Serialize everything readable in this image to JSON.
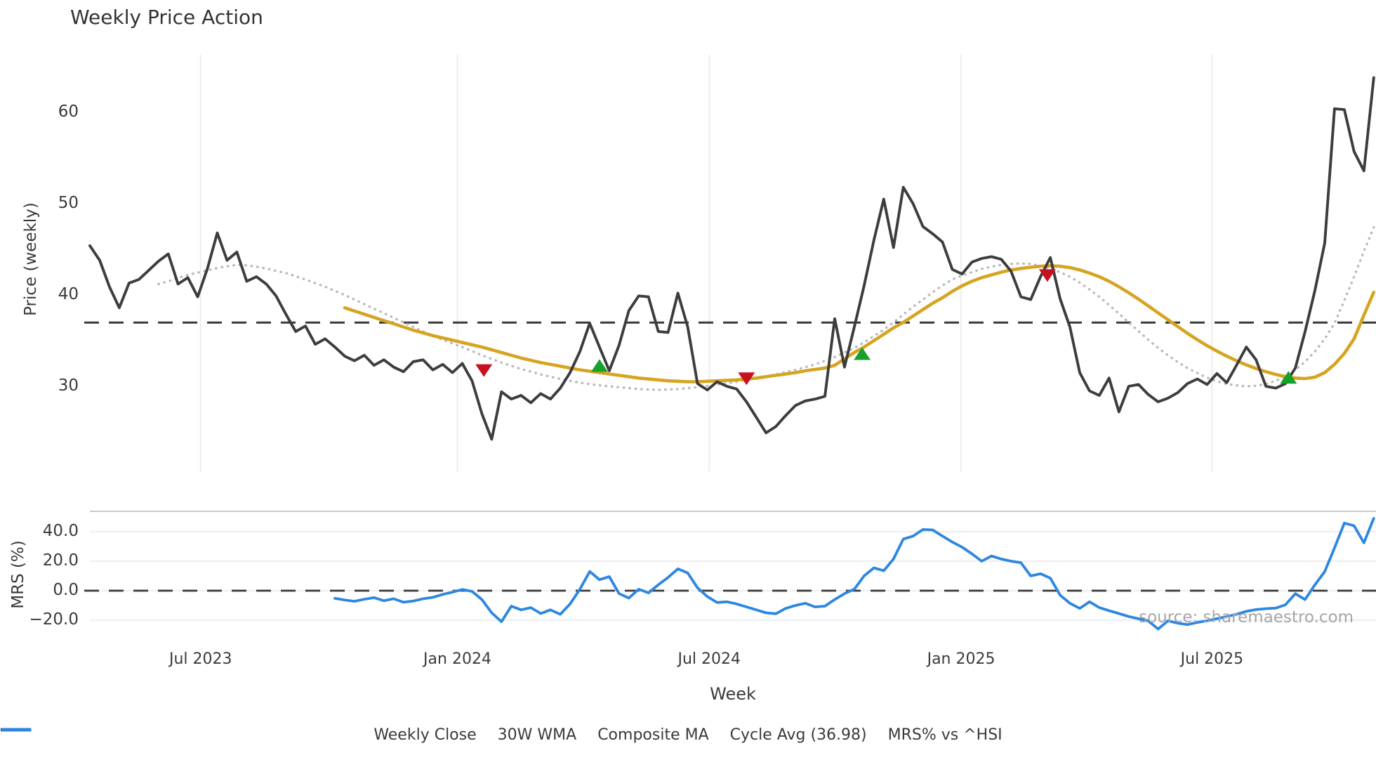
{
  "page": {
    "title": "Weekly Price Action",
    "xlabel": "Week",
    "source_note": "source: sharemaestro.com"
  },
  "colors": {
    "weekly_close": "#3d3d3d",
    "wma": "#d5a421",
    "composite": "#b9b9b9",
    "cycle": "#3a3a3a",
    "mrs": "#2d87e0",
    "buy": "#17a12b",
    "sell": "#c8101f",
    "grid": "#ededed",
    "mrs_grid": "#eff0f4",
    "panel_border": "#c9c9c9",
    "text": "#3a3a3a",
    "muted": "#a6a6a6"
  },
  "legend": [
    {
      "label": "Weekly Close",
      "swatch": "solid",
      "color_key": "weekly_close"
    },
    {
      "label": "30W WMA",
      "swatch": "solid",
      "color_key": "wma"
    },
    {
      "label": "Composite MA",
      "swatch": "dotted",
      "color_key": "composite"
    },
    {
      "label": "Cycle Avg (36.98)",
      "swatch": "dashed",
      "color_key": "cycle"
    },
    {
      "label": "MRS% vs ^HSI",
      "swatch": "solid",
      "color_key": "mrs"
    }
  ],
  "chart_data": [
    {
      "type": "line",
      "panel": "price",
      "title": "Weekly Price Action",
      "ylabel": "Price (weekly)",
      "yticks": [
        {
          "v": 60,
          "label": "60"
        },
        {
          "v": 50,
          "label": "50"
        },
        {
          "v": 40,
          "label": "40"
        },
        {
          "v": 30,
          "label": "30"
        }
      ],
      "ylim": [
        20.5,
        66.5
      ],
      "grid": "vertical-only",
      "x_ticks": [
        {
          "week": 11.3,
          "label": "Jul 2023"
        },
        {
          "week": 37.5,
          "label": "Jan 2024"
        },
        {
          "week": 63.2,
          "label": "Jul 2024"
        },
        {
          "week": 88.9,
          "label": "Jan 2025"
        },
        {
          "week": 114.5,
          "label": "Jul 2025"
        }
      ],
      "cycle_avg": 36.98,
      "series": [
        {
          "name": "Weekly Close",
          "style": "solid",
          "start_week": 0,
          "values": [
            45.4,
            43.8,
            40.9,
            38.6,
            41.3,
            41.7,
            42.7,
            43.7,
            44.5,
            41.2,
            41.9,
            39.8,
            42.9,
            46.8,
            43.8,
            44.7,
            41.5,
            42.0,
            41.2,
            39.9,
            37.9,
            36.0,
            36.6,
            34.6,
            35.2,
            34.3,
            33.3,
            32.8,
            33.4,
            32.3,
            32.9,
            32.1,
            31.6,
            32.7,
            32.9,
            31.8,
            32.4,
            31.5,
            32.5,
            30.6,
            27.0,
            24.2,
            29.4,
            28.6,
            29.0,
            28.2,
            29.2,
            28.6,
            29.8,
            31.5,
            33.8,
            36.9,
            34.3,
            31.7,
            34.5,
            38.3,
            39.9,
            39.8,
            36.0,
            35.9,
            40.2,
            36.5,
            30.3,
            29.6,
            30.5,
            30.0,
            29.7,
            28.3,
            26.6,
            24.9,
            25.6,
            26.8,
            27.9,
            28.4,
            28.6,
            28.9,
            37.4,
            32.1,
            36.5,
            41.0,
            46.0,
            50.5,
            45.2,
            51.8,
            50.0,
            47.5,
            46.7,
            45.8,
            42.8,
            42.3,
            43.6,
            44.0,
            44.2,
            43.9,
            42.6,
            39.8,
            39.5,
            42.0,
            44.1,
            39.6,
            36.5,
            31.5,
            29.5,
            29.0,
            30.9,
            27.2,
            30.0,
            30.2,
            29.1,
            28.3,
            28.7,
            29.3,
            30.3,
            30.8,
            30.2,
            31.4,
            30.4,
            32.3,
            34.3,
            32.9,
            30.0,
            29.8,
            30.3,
            32.0,
            36.0,
            40.5,
            45.7,
            60.4,
            60.3,
            55.7,
            53.6,
            63.8
          ]
        },
        {
          "name": "30W WMA",
          "style": "solid",
          "start_week": 26,
          "values": [
            38.6,
            38.25,
            37.9,
            37.55,
            37.2,
            36.85,
            36.5,
            36.15,
            35.85,
            35.55,
            35.3,
            35.05,
            34.8,
            34.55,
            34.3,
            34.0,
            33.7,
            33.4,
            33.1,
            32.85,
            32.6,
            32.4,
            32.2,
            32.0,
            31.8,
            31.65,
            31.5,
            31.35,
            31.2,
            31.05,
            30.9,
            30.8,
            30.7,
            30.6,
            30.55,
            30.5,
            30.5,
            30.55,
            30.6,
            30.65,
            30.7,
            30.8,
            30.9,
            31.05,
            31.2,
            31.35,
            31.5,
            31.7,
            31.85,
            32.0,
            32.3,
            33.0,
            33.7,
            34.3,
            35.0,
            35.7,
            36.4,
            37.0,
            37.7,
            38.4,
            39.1,
            39.7,
            40.4,
            41.0,
            41.5,
            41.9,
            42.2,
            42.5,
            42.75,
            42.9,
            43.05,
            43.15,
            43.2,
            43.15,
            43.0,
            42.75,
            42.4,
            42.0,
            41.5,
            40.9,
            40.25,
            39.55,
            38.8,
            38.05,
            37.3,
            36.55,
            35.8,
            35.1,
            34.45,
            33.85,
            33.3,
            32.8,
            32.35,
            31.95,
            31.6,
            31.3,
            31.05,
            30.9,
            30.85,
            31.0,
            31.5,
            32.4,
            33.6,
            35.2,
            37.8,
            40.3
          ]
        },
        {
          "name": "Composite MA",
          "style": "dotted",
          "start_week": 7,
          "values": [
            41.2,
            41.5,
            41.85,
            42.2,
            42.45,
            42.7,
            42.95,
            43.15,
            43.3,
            43.25,
            43.1,
            42.9,
            42.65,
            42.4,
            42.05,
            41.7,
            41.3,
            40.9,
            40.45,
            40.0,
            39.5,
            39.0,
            38.5,
            38.0,
            37.5,
            37.0,
            36.5,
            36.0,
            35.55,
            35.1,
            34.7,
            34.3,
            33.85,
            33.4,
            33.0,
            32.6,
            32.25,
            31.9,
            31.6,
            31.3,
            31.05,
            30.8,
            30.6,
            30.4,
            30.25,
            30.1,
            30.0,
            29.9,
            29.8,
            29.7,
            29.65,
            29.6,
            29.65,
            29.7,
            29.8,
            29.9,
            30.05,
            30.2,
            30.35,
            30.5,
            30.7,
            30.9,
            31.1,
            31.3,
            31.55,
            31.8,
            32.1,
            32.4,
            32.8,
            33.2,
            33.7,
            34.2,
            34.8,
            35.5,
            36.2,
            37.0,
            37.85,
            38.7,
            39.5,
            40.3,
            41.05,
            41.7,
            42.15,
            42.5,
            42.85,
            43.1,
            43.3,
            43.4,
            43.45,
            43.4,
            43.2,
            42.9,
            42.5,
            42.0,
            41.35,
            40.6,
            39.8,
            38.9,
            37.95,
            37.0,
            36.05,
            35.1,
            34.2,
            33.4,
            32.65,
            32.0,
            31.45,
            30.95,
            30.55,
            30.25,
            30.1,
            30.0,
            30.05,
            30.25,
            30.6,
            31.1,
            31.8,
            32.7,
            33.8,
            35.2,
            36.9,
            39.4,
            42.0,
            44.8,
            47.4
          ]
        }
      ],
      "signals": {
        "sell": [
          [
            40.2,
            31.8
          ],
          [
            67.0,
            30.9
          ],
          [
            97.7,
            42.2
          ]
        ],
        "buy": [
          [
            52.0,
            32.2
          ],
          [
            78.8,
            33.5
          ],
          [
            122.3,
            30.9
          ]
        ]
      }
    },
    {
      "type": "line",
      "panel": "mrs",
      "ylabel": "MRS (%)",
      "yticks": [
        {
          "v": 40,
          "label": "40.0"
        },
        {
          "v": 20,
          "label": "20.0"
        },
        {
          "v": 0,
          "label": "0.0"
        },
        {
          "v": -20,
          "label": "−20.0"
        }
      ],
      "ylim": [
        -30,
        53
      ],
      "grid": "horizontal",
      "zero_dashed": 0,
      "series": [
        {
          "name": "MRS% vs ^HSI",
          "style": "solid",
          "start_week": 25,
          "values": [
            -5.2,
            -6.3,
            -7.2,
            -5.8,
            -4.7,
            -6.8,
            -5.5,
            -7.8,
            -7.0,
            -5.5,
            -4.5,
            -2.5,
            -1.0,
            0.8,
            -0.5,
            -6.0,
            -15.0,
            -21.0,
            -10.5,
            -13.0,
            -11.5,
            -15.5,
            -13.0,
            -16.0,
            -9.0,
            1.0,
            13.0,
            7.5,
            9.5,
            -2.0,
            -5.0,
            1.0,
            -1.5,
            4.0,
            9.0,
            14.8,
            12.0,
            2.0,
            -4.0,
            -8.0,
            -7.5,
            -9.0,
            -11.0,
            -13.0,
            -15.0,
            -15.6,
            -12.0,
            -10.0,
            -8.5,
            -11.0,
            -10.5,
            -6.0,
            -2.0,
            1.0,
            10.0,
            15.5,
            13.5,
            21.5,
            35.0,
            37.0,
            41.5,
            41.2,
            37.0,
            33.0,
            29.5,
            25.0,
            20.0,
            23.5,
            21.5,
            20.0,
            19.0,
            10.0,
            11.5,
            8.5,
            -3.0,
            -8.5,
            -12.0,
            -7.5,
            -11.5,
            -13.5,
            -15.5,
            -17.5,
            -19.0,
            -20.5,
            -26.0,
            -20.5,
            -22.0,
            -23.0,
            -21.5,
            -20.5,
            -19.0,
            -17.5,
            -16.0,
            -14.0,
            -12.8,
            -12.2,
            -11.8,
            -9.5,
            -2.0,
            -6.0,
            4.0,
            13.0,
            29.0,
            45.8,
            44.0,
            32.5,
            49.0
          ]
        }
      ]
    }
  ]
}
